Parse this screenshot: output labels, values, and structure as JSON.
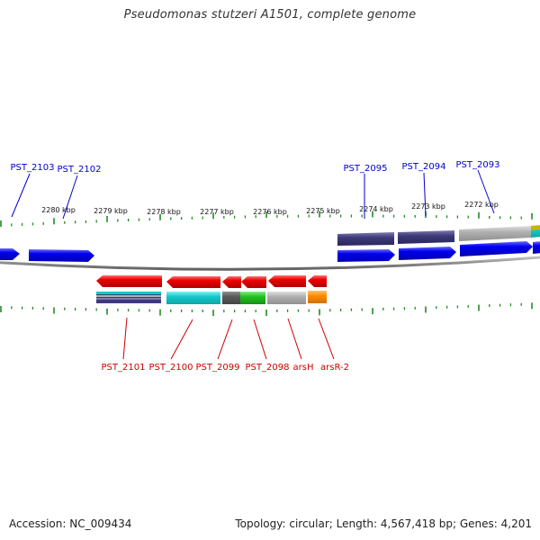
{
  "title": "Pseudomonas stutzeri A1501, complete genome",
  "footer": {
    "accession": "Accession: NC_009434",
    "summary": "Topology: circular; Length: 4,567,418 bp; Genes: 4,201"
  },
  "colors": {
    "forward_gene": "#0000ee",
    "reverse_gene": "#ee0000",
    "forward_label": "#0000cc",
    "reverse_label": "#cc0000",
    "tick": "#228b22",
    "backbone": "#8c8c8c"
  },
  "scale_labels": [
    "2280 kbp",
    "2279 kbp",
    "2278 kbp",
    "2277 kbp",
    "2276 kbp",
    "2275 kbp",
    "2274 kbp",
    "2273 kbp",
    "2272 kbp"
  ],
  "forward_genes": [
    "PST_2103",
    "PST_2102",
    "PST_2095",
    "PST_2094",
    "PST_2093"
  ],
  "reverse_genes": [
    "PST_2101",
    "PST_2100",
    "PST_2099",
    "PST_2098",
    "arsH",
    "arsR-2"
  ]
}
